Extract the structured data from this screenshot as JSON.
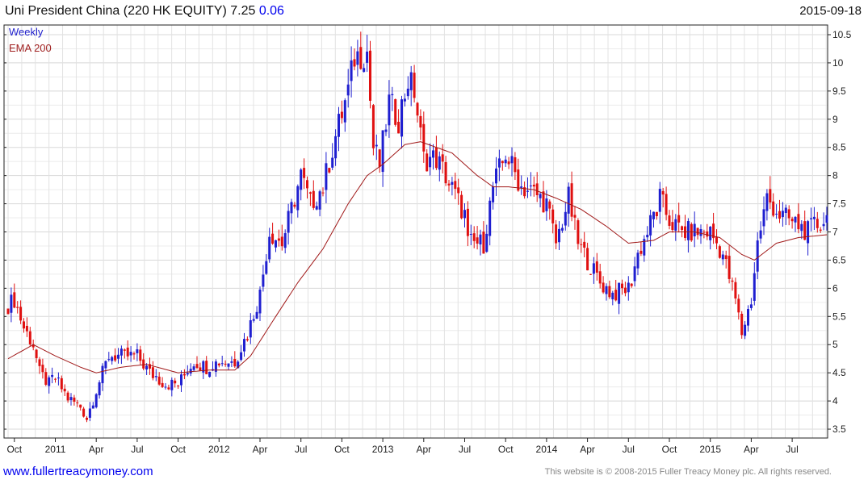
{
  "header": {
    "title": "Uni President China (220 HK EQUITY) 7.25",
    "change": "0.06",
    "date": "2015-09-18"
  },
  "footer": {
    "site": "www.fullertreacymoney.com",
    "copyright": "This website is © 2008-2015 Fuller Treacy Money plc. All rights reserved."
  },
  "colors": {
    "up": "#1f1fd0",
    "down": "#e01010",
    "ema": "#a01818"
  },
  "chart_data": {
    "type": "candlestick",
    "title": "Uni President China (220 HK EQUITY) 7.25 0.06",
    "legend": [
      "Weekly",
      "EMA 200"
    ],
    "ylim": [
      3.4,
      10.65
    ],
    "yticks": [
      3.5,
      4,
      4.5,
      5,
      5.5,
      6,
      6.5,
      7,
      7.5,
      8,
      8.5,
      9,
      9.5,
      10,
      10.5
    ],
    "ytick_labels": [
      "3.5",
      "4",
      "4.5",
      "5",
      "5.5",
      "6",
      "6.5",
      "7",
      "7.5",
      "8",
      "8.5",
      "9",
      "9.5",
      "10",
      "10.5"
    ],
    "weeks": 261,
    "xticks": [
      {
        "week": 2,
        "label": "Oct"
      },
      {
        "week": 15,
        "label": "2011"
      },
      {
        "week": 28,
        "label": "Apr"
      },
      {
        "week": 41,
        "label": "Jul"
      },
      {
        "week": 54,
        "label": "Oct"
      },
      {
        "week": 67,
        "label": "2012"
      },
      {
        "week": 80,
        "label": "Apr"
      },
      {
        "week": 93,
        "label": "Jul"
      },
      {
        "week": 106,
        "label": "Oct"
      },
      {
        "week": 119,
        "label": "2013"
      },
      {
        "week": 132,
        "label": "Apr"
      },
      {
        "week": 145,
        "label": "Jul"
      },
      {
        "week": 158,
        "label": "Oct"
      },
      {
        "week": 171,
        "label": "2014"
      },
      {
        "week": 184,
        "label": "Apr"
      },
      {
        "week": 197,
        "label": "Jul"
      },
      {
        "week": 210,
        "label": "Oct"
      },
      {
        "week": 223,
        "label": "2015"
      },
      {
        "week": 236,
        "label": "Apr"
      },
      {
        "week": 249,
        "label": "Jul"
      }
    ],
    "close_anchors": [
      [
        0,
        5.7
      ],
      [
        2,
        5.8
      ],
      [
        5,
        5.3
      ],
      [
        8,
        5.0
      ],
      [
        10,
        4.5
      ],
      [
        13,
        4.3
      ],
      [
        15,
        4.4
      ],
      [
        19,
        4.05
      ],
      [
        23,
        3.9
      ],
      [
        25,
        3.7
      ],
      [
        28,
        4.2
      ],
      [
        32,
        4.8
      ],
      [
        36,
        4.8
      ],
      [
        41,
        4.8
      ],
      [
        45,
        4.5
      ],
      [
        50,
        4.3
      ],
      [
        54,
        4.3
      ],
      [
        59,
        4.7
      ],
      [
        63,
        4.6
      ],
      [
        67,
        4.7
      ],
      [
        72,
        4.7
      ],
      [
        76,
        5.2
      ],
      [
        80,
        5.9
      ],
      [
        83,
        7.0
      ],
      [
        87,
        6.8
      ],
      [
        93,
        8.0
      ],
      [
        96,
        7.5
      ],
      [
        100,
        7.8
      ],
      [
        104,
        8.7
      ],
      [
        108,
        9.5
      ],
      [
        110,
        10.1
      ],
      [
        114,
        10.2
      ],
      [
        116,
        8.5
      ],
      [
        118,
        8.2
      ],
      [
        121,
        9.3
      ],
      [
        124,
        9.0
      ],
      [
        127,
        9.7
      ],
      [
        129,
        9.5
      ],
      [
        132,
        8.3
      ],
      [
        136,
        8.3
      ],
      [
        139,
        8.0
      ],
      [
        145,
        7.3
      ],
      [
        146,
        6.8
      ],
      [
        151,
        6.8
      ],
      [
        154,
        7.8
      ],
      [
        158,
        8.4
      ],
      [
        163,
        7.8
      ],
      [
        167,
        7.7
      ],
      [
        171,
        7.5
      ],
      [
        174,
        6.8
      ],
      [
        178,
        7.6
      ],
      [
        181,
        6.8
      ],
      [
        184,
        6.5
      ],
      [
        188,
        6.1
      ],
      [
        192,
        5.9
      ],
      [
        197,
        6.0
      ],
      [
        200,
        6.6
      ],
      [
        203,
        7.0
      ],
      [
        207,
        7.6
      ],
      [
        210,
        7.2
      ],
      [
        214,
        7.0
      ],
      [
        218,
        7.0
      ],
      [
        223,
        7.0
      ],
      [
        227,
        6.6
      ],
      [
        231,
        5.8
      ],
      [
        233,
        5.2
      ],
      [
        236,
        5.8
      ],
      [
        238,
        6.8
      ],
      [
        241,
        7.6
      ],
      [
        245,
        7.3
      ],
      [
        249,
        7.2
      ],
      [
        254,
        7.0
      ],
      [
        260,
        7.25
      ]
    ],
    "ema_anchors": [
      [
        0,
        4.75
      ],
      [
        8,
        5.0
      ],
      [
        15,
        4.8
      ],
      [
        23,
        4.6
      ],
      [
        28,
        4.5
      ],
      [
        36,
        4.6
      ],
      [
        44,
        4.65
      ],
      [
        54,
        4.5
      ],
      [
        64,
        4.55
      ],
      [
        72,
        4.55
      ],
      [
        77,
        4.8
      ],
      [
        85,
        5.5
      ],
      [
        92,
        6.1
      ],
      [
        100,
        6.7
      ],
      [
        108,
        7.5
      ],
      [
        114,
        8.0
      ],
      [
        119,
        8.2
      ],
      [
        126,
        8.55
      ],
      [
        131,
        8.6
      ],
      [
        141,
        8.4
      ],
      [
        149,
        8.0
      ],
      [
        154,
        7.8
      ],
      [
        159,
        7.8
      ],
      [
        167,
        7.75
      ],
      [
        174,
        7.6
      ],
      [
        182,
        7.4
      ],
      [
        190,
        7.1
      ],
      [
        197,
        6.8
      ],
      [
        205,
        6.85
      ],
      [
        210,
        7.0
      ],
      [
        218,
        7.0
      ],
      [
        226,
        6.9
      ],
      [
        233,
        6.6
      ],
      [
        237,
        6.5
      ],
      [
        244,
        6.8
      ],
      [
        251,
        6.9
      ],
      [
        260,
        6.95
      ]
    ]
  }
}
